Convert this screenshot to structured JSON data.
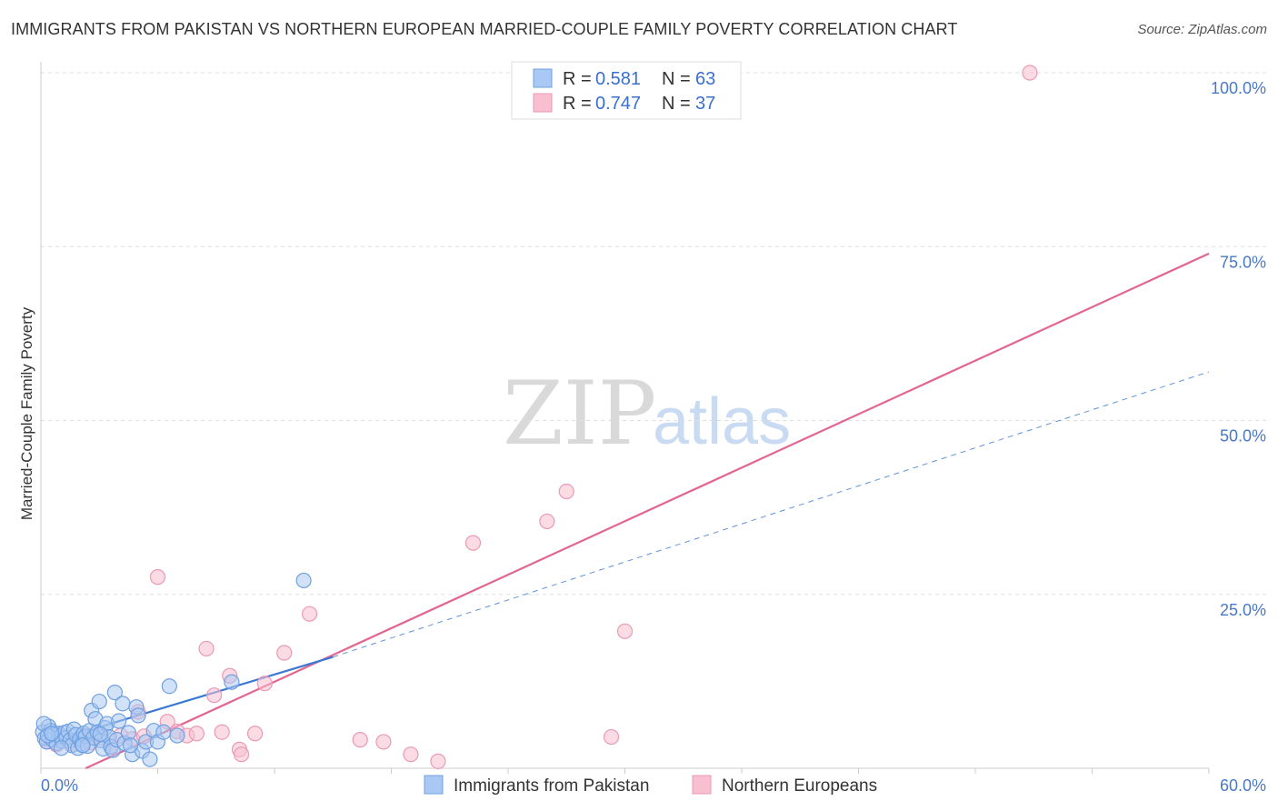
{
  "title": "IMMIGRANTS FROM PAKISTAN VS NORTHERN EUROPEAN MARRIED-COUPLE FAMILY POVERTY CORRELATION CHART",
  "source": "Source: ZipAtlas.com",
  "watermark": {
    "zip": "ZIP",
    "atlas": "atlas"
  },
  "colors": {
    "blue_fill": "#a9c8f3",
    "blue_stroke": "#6fa0e0",
    "blue_line": "#3a78d4",
    "pink_fill": "#f7bfd0",
    "pink_stroke": "#ea9ab3",
    "pink_line": "#e2668f",
    "grid": "#dddddd",
    "tick_label": "#4a78c8"
  },
  "legend": {
    "rows": [
      {
        "r_label": "R =",
        "r_value": "0.581",
        "n_label": "N =",
        "n_value": "63"
      },
      {
        "r_label": "R =",
        "r_value": "0.747",
        "n_label": "N =",
        "n_value": "37"
      }
    ]
  },
  "chart_data": {
    "type": "scatter",
    "xlabel": "",
    "ylabel": "Married-Couple Family Poverty",
    "xlim": [
      0,
      60
    ],
    "ylim": [
      0,
      100
    ],
    "x_tick_labels": [
      "0.0%",
      "60.0%"
    ],
    "y_ticks": [
      25,
      50,
      75,
      100
    ],
    "y_tick_labels": [
      "25.0%",
      "50.0%",
      "75.0%",
      "100.0%"
    ],
    "legend_position": "top-center",
    "series": [
      {
        "name": "Immigrants from Pakistan",
        "r": 0.581,
        "n": 63,
        "trend": {
          "x0": 0,
          "y0": 3.4,
          "x1": 15,
          "y1": 16.0,
          "dashed_to_x": 60,
          "dashed_to_y": 57.0
        },
        "points": [
          [
            0.1,
            5.2
          ],
          [
            0.2,
            4.3
          ],
          [
            0.3,
            3.8
          ],
          [
            0.4,
            6.0
          ],
          [
            0.5,
            5.4
          ],
          [
            0.6,
            4.1
          ],
          [
            0.7,
            4.9
          ],
          [
            0.8,
            3.6
          ],
          [
            0.9,
            5.0
          ],
          [
            1.0,
            4.6
          ],
          [
            1.1,
            3.9
          ],
          [
            1.2,
            5.1
          ],
          [
            1.3,
            4.4
          ],
          [
            1.4,
            5.3
          ],
          [
            1.5,
            4.0
          ],
          [
            1.6,
            3.3
          ],
          [
            1.7,
            5.6
          ],
          [
            1.8,
            4.8
          ],
          [
            1.9,
            2.9
          ],
          [
            2.0,
            4.2
          ],
          [
            2.1,
            3.5
          ],
          [
            2.2,
            5.0
          ],
          [
            2.3,
            4.6
          ],
          [
            2.4,
            3.2
          ],
          [
            2.5,
            5.4
          ],
          [
            2.6,
            8.3
          ],
          [
            2.7,
            4.4
          ],
          [
            2.8,
            7.1
          ],
          [
            2.9,
            5.2
          ],
          [
            3.0,
            9.6
          ],
          [
            3.1,
            4.0
          ],
          [
            3.2,
            2.8
          ],
          [
            3.3,
            5.8
          ],
          [
            3.4,
            6.4
          ],
          [
            3.5,
            4.5
          ],
          [
            3.6,
            3.1
          ],
          [
            3.7,
            2.6
          ],
          [
            3.8,
            10.9
          ],
          [
            3.9,
            4.1
          ],
          [
            4.0,
            6.8
          ],
          [
            4.2,
            9.3
          ],
          [
            4.3,
            3.6
          ],
          [
            4.5,
            5.1
          ],
          [
            4.7,
            2.0
          ],
          [
            4.9,
            8.8
          ],
          [
            5.0,
            7.6
          ],
          [
            5.2,
            2.5
          ],
          [
            5.4,
            3.8
          ],
          [
            5.6,
            1.3
          ],
          [
            5.8,
            5.4
          ],
          [
            6.0,
            3.8
          ],
          [
            6.3,
            5.2
          ],
          [
            6.6,
            11.8
          ],
          [
            7.0,
            4.7
          ],
          [
            9.8,
            12.4
          ],
          [
            13.5,
            27.0
          ],
          [
            0.15,
            6.4
          ],
          [
            0.35,
            4.7
          ],
          [
            0.55,
            5.0
          ],
          [
            1.05,
            2.9
          ],
          [
            2.15,
            3.3
          ],
          [
            3.05,
            4.9
          ],
          [
            4.6,
            3.3
          ]
        ]
      },
      {
        "name": "Northern Europeans",
        "r": 0.747,
        "n": 37,
        "trend": {
          "x0": 2.3,
          "y0": 0,
          "x1": 60,
          "y1": 74.0
        },
        "points": [
          [
            0.3,
            3.9
          ],
          [
            0.8,
            3.4
          ],
          [
            1.2,
            4.3
          ],
          [
            1.6,
            3.5
          ],
          [
            2.1,
            4.6
          ],
          [
            2.6,
            3.7
          ],
          [
            3.1,
            4.4
          ],
          [
            3.6,
            3.0
          ],
          [
            4.1,
            4.7
          ],
          [
            4.7,
            4.2
          ],
          [
            5.0,
            8.1
          ],
          [
            5.3,
            4.6
          ],
          [
            6.0,
            27.5
          ],
          [
            6.5,
            6.7
          ],
          [
            7.0,
            5.3
          ],
          [
            7.5,
            4.7
          ],
          [
            8.0,
            5.0
          ],
          [
            8.5,
            17.2
          ],
          [
            8.9,
            10.5
          ],
          [
            9.3,
            5.2
          ],
          [
            9.7,
            13.3
          ],
          [
            10.2,
            2.7
          ],
          [
            10.3,
            2.0
          ],
          [
            11.0,
            5.0
          ],
          [
            11.5,
            12.2
          ],
          [
            12.5,
            16.6
          ],
          [
            13.8,
            22.2
          ],
          [
            16.4,
            4.1
          ],
          [
            17.6,
            3.8
          ],
          [
            19.0,
            2.0
          ],
          [
            20.4,
            1.0
          ],
          [
            22.2,
            32.4
          ],
          [
            26.0,
            35.5
          ],
          [
            27.0,
            39.8
          ],
          [
            29.3,
            4.5
          ],
          [
            30.0,
            19.7
          ],
          [
            50.8,
            100.0
          ]
        ]
      }
    ]
  },
  "bottom_legend": {
    "items": [
      {
        "label": "Immigrants from Pakistan"
      },
      {
        "label": "Northern Europeans"
      }
    ]
  }
}
